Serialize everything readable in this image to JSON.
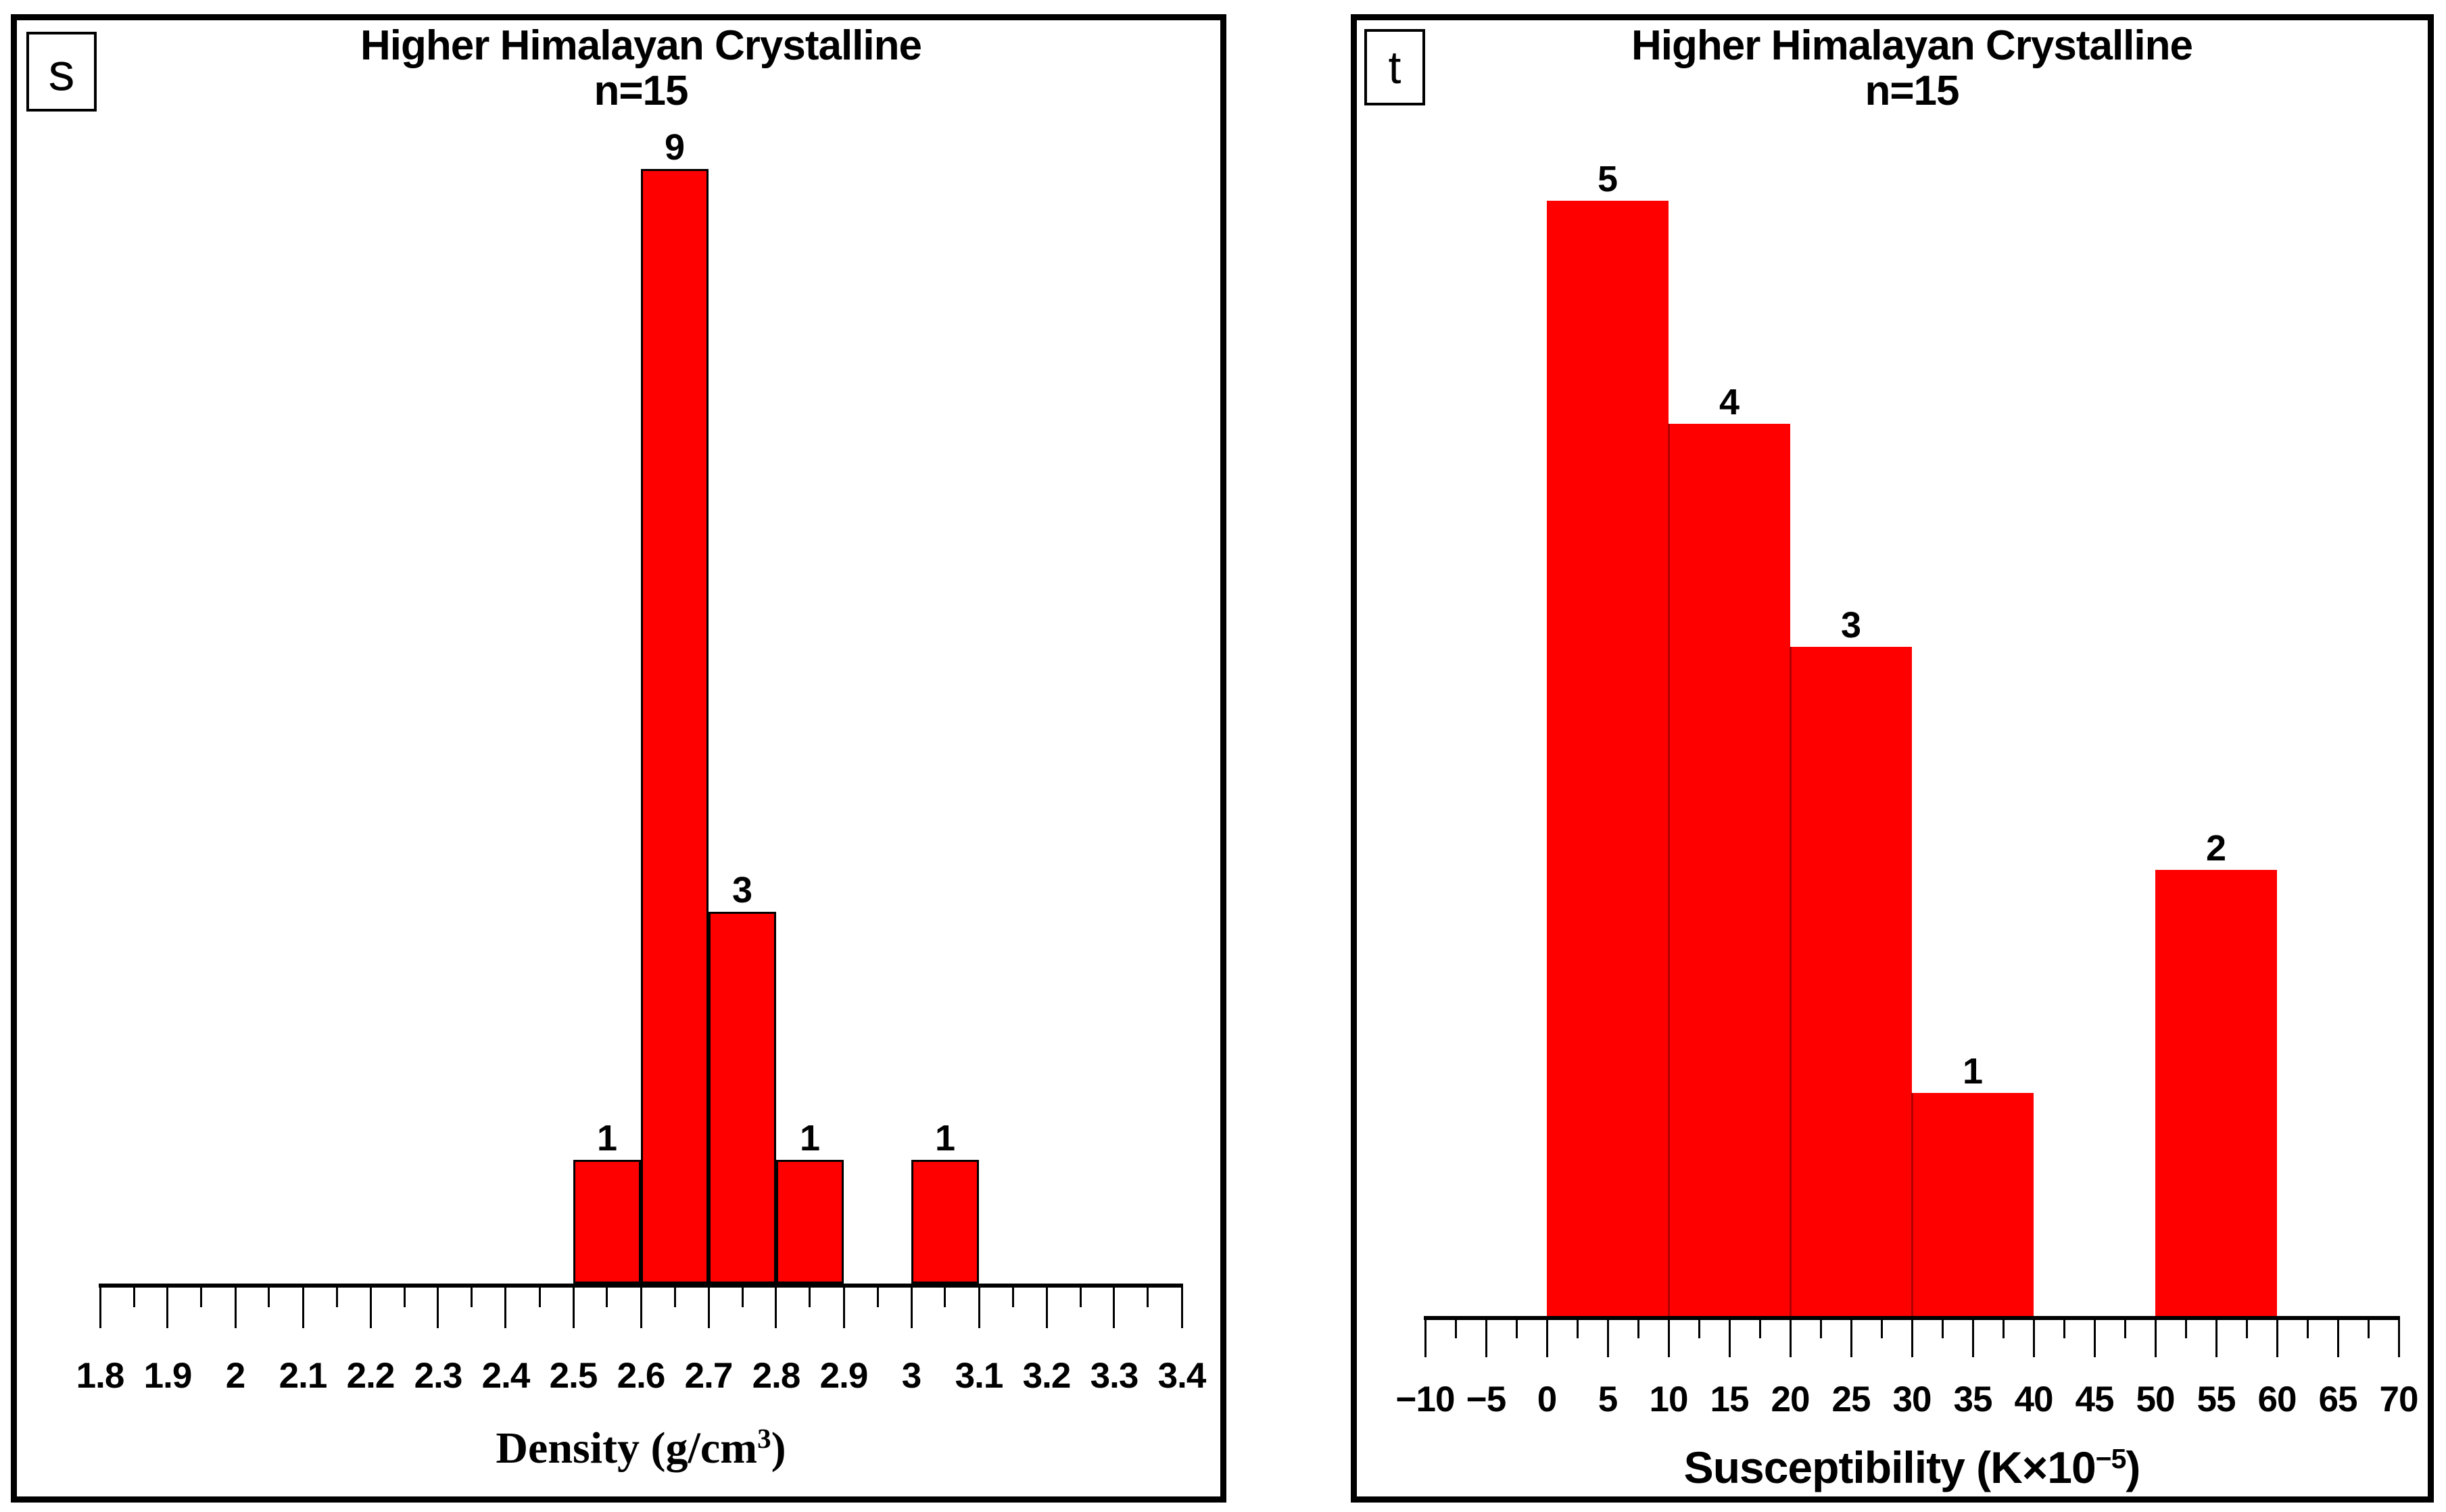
{
  "figure": {
    "background_color": "#ffffff",
    "frame_color": "#000000"
  },
  "chart_data": [
    {
      "type": "bar",
      "subtype": "histogram",
      "panel_letter": "s",
      "title": "Higher Himalayan Crystalline",
      "subtitle": "n=15",
      "n_total": 15,
      "xlabel": {
        "base": "Density (g/cm",
        "sup": "3",
        "close": ")"
      },
      "x_axis": {
        "min": 1.8,
        "max": 3.4,
        "major_step": 0.1,
        "minor_step": 0.05
      },
      "ylim": [
        0,
        9
      ],
      "grid": false,
      "legend": "none",
      "bar_color": "#ff0000",
      "bar_border_color": "#000000",
      "x_tick_labels": [
        {
          "v": 1.8,
          "label": "1.8"
        },
        {
          "v": 1.9,
          "label": "1.9"
        },
        {
          "v": 2.0,
          "label": "2"
        },
        {
          "v": 2.1,
          "label": "2.1"
        },
        {
          "v": 2.2,
          "label": "2.2"
        },
        {
          "v": 2.3,
          "label": "2.3"
        },
        {
          "v": 2.4,
          "label": "2.4"
        },
        {
          "v": 2.5,
          "label": "2.5"
        },
        {
          "v": 2.6,
          "label": "2.6"
        },
        {
          "v": 2.7,
          "label": "2.7"
        },
        {
          "v": 2.8,
          "label": "2.8"
        },
        {
          "v": 2.9,
          "label": "2.9"
        },
        {
          "v": 3.0,
          "label": "3"
        },
        {
          "v": 3.1,
          "label": "3.1"
        },
        {
          "v": 3.2,
          "label": "3.2"
        },
        {
          "v": 3.3,
          "label": "3.3"
        },
        {
          "v": 3.4,
          "label": "3.4"
        }
      ],
      "bars": [
        {
          "x0": 2.5,
          "x1": 2.6,
          "count": 1
        },
        {
          "x0": 2.6,
          "x1": 2.7,
          "count": 9
        },
        {
          "x0": 2.7,
          "x1": 2.8,
          "count": 3
        },
        {
          "x0": 2.8,
          "x1": 2.9,
          "count": 1
        },
        {
          "x0": 3.0,
          "x1": 3.1,
          "count": 1
        }
      ]
    },
    {
      "type": "bar",
      "subtype": "histogram",
      "panel_letter": "t",
      "title": "Higher Himalayan Crystalline",
      "subtitle": "n=15",
      "n_total": 15,
      "xlabel": {
        "base": "Susceptibility (K×10",
        "sup": "−5",
        "close": ")"
      },
      "x_axis": {
        "min": -10,
        "max": 70,
        "major_step": 5,
        "minor_step": 2.5
      },
      "ylim": [
        0,
        5
      ],
      "grid": false,
      "legend": "none",
      "bar_color": "#ff0000",
      "bar_border_color": "none",
      "bar_divider_color": "#b00000",
      "x_tick_labels": [
        {
          "v": -10,
          "label": "−10"
        },
        {
          "v": -5,
          "label": "−5"
        },
        {
          "v": 0,
          "label": "0"
        },
        {
          "v": 5,
          "label": "5"
        },
        {
          "v": 10,
          "label": "10"
        },
        {
          "v": 15,
          "label": "15"
        },
        {
          "v": 20,
          "label": "20"
        },
        {
          "v": 25,
          "label": "25"
        },
        {
          "v": 30,
          "label": "30"
        },
        {
          "v": 35,
          "label": "35"
        },
        {
          "v": 40,
          "label": "40"
        },
        {
          "v": 45,
          "label": "45"
        },
        {
          "v": 50,
          "label": "50"
        },
        {
          "v": 55,
          "label": "55"
        },
        {
          "v": 60,
          "label": "60"
        },
        {
          "v": 65,
          "label": "65"
        },
        {
          "v": 70,
          "label": "70"
        }
      ],
      "bars": [
        {
          "x0": 0,
          "x1": 10,
          "count": 5
        },
        {
          "x0": 10,
          "x1": 20,
          "count": 4
        },
        {
          "x0": 20,
          "x1": 30,
          "count": 3
        },
        {
          "x0": 30,
          "x1": 40,
          "count": 1
        },
        {
          "x0": 50,
          "x1": 60,
          "count": 2
        }
      ]
    }
  ]
}
